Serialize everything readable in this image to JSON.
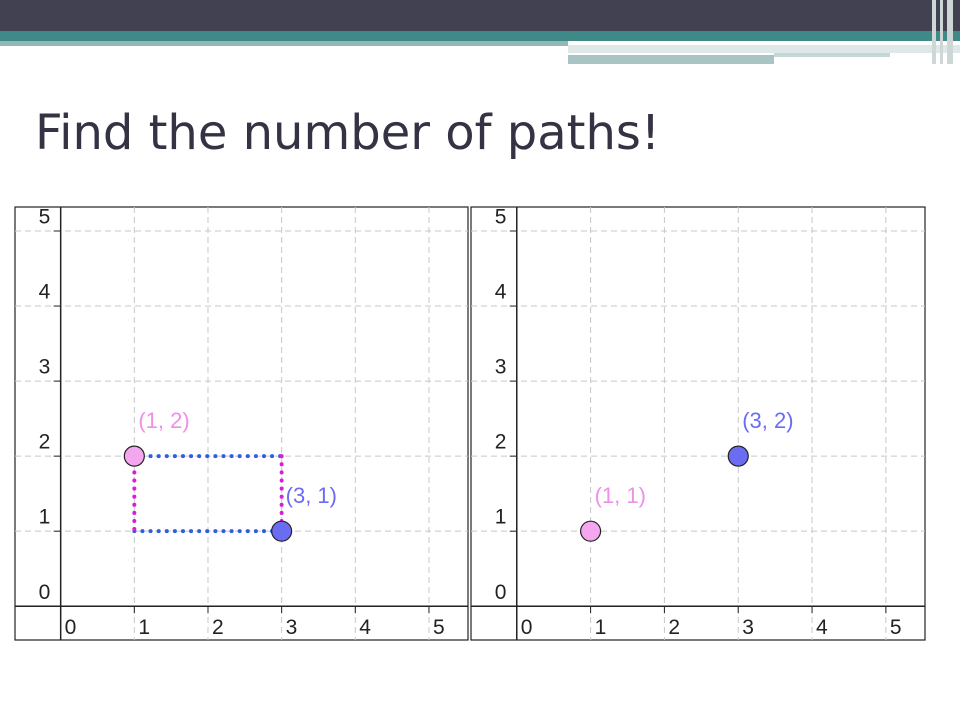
{
  "title": "Find the number of paths!",
  "chart_data": [
    {
      "type": "scatter",
      "xlim": [
        -0.62,
        5.53
      ],
      "ylim": [
        -0.45,
        5.32
      ],
      "xticks": [
        0,
        1,
        2,
        3,
        4,
        5
      ],
      "yticks": [
        0,
        1,
        2,
        3,
        4,
        5
      ],
      "grid": true,
      "points": [
        {
          "x": 1,
          "y": 2,
          "label": "(1, 2)",
          "color": "#f4a6ee",
          "label_color": "#f08ee8"
        },
        {
          "x": 3,
          "y": 1,
          "label": "(3, 1)",
          "color": "#6a6cf2",
          "label_color": "#6a6cf2"
        }
      ],
      "paths": true,
      "path_colors": {
        "horizontal": "#2f5fe0",
        "vertical": "#d81ed8"
      }
    },
    {
      "type": "scatter",
      "xlim": [
        -0.62,
        5.53
      ],
      "ylim": [
        -0.45,
        5.32
      ],
      "xticks": [
        0,
        1,
        2,
        3,
        4,
        5
      ],
      "yticks": [
        0,
        1,
        2,
        3,
        4,
        5
      ],
      "grid": true,
      "points": [
        {
          "x": 1,
          "y": 1,
          "label": "(1, 1)",
          "color": "#f4a6ee",
          "label_color": "#f08ee8"
        },
        {
          "x": 3,
          "y": 2,
          "label": "(3, 2)",
          "color": "#6a6cf2",
          "label_color": "#6a6cf2"
        }
      ],
      "paths": false
    }
  ]
}
